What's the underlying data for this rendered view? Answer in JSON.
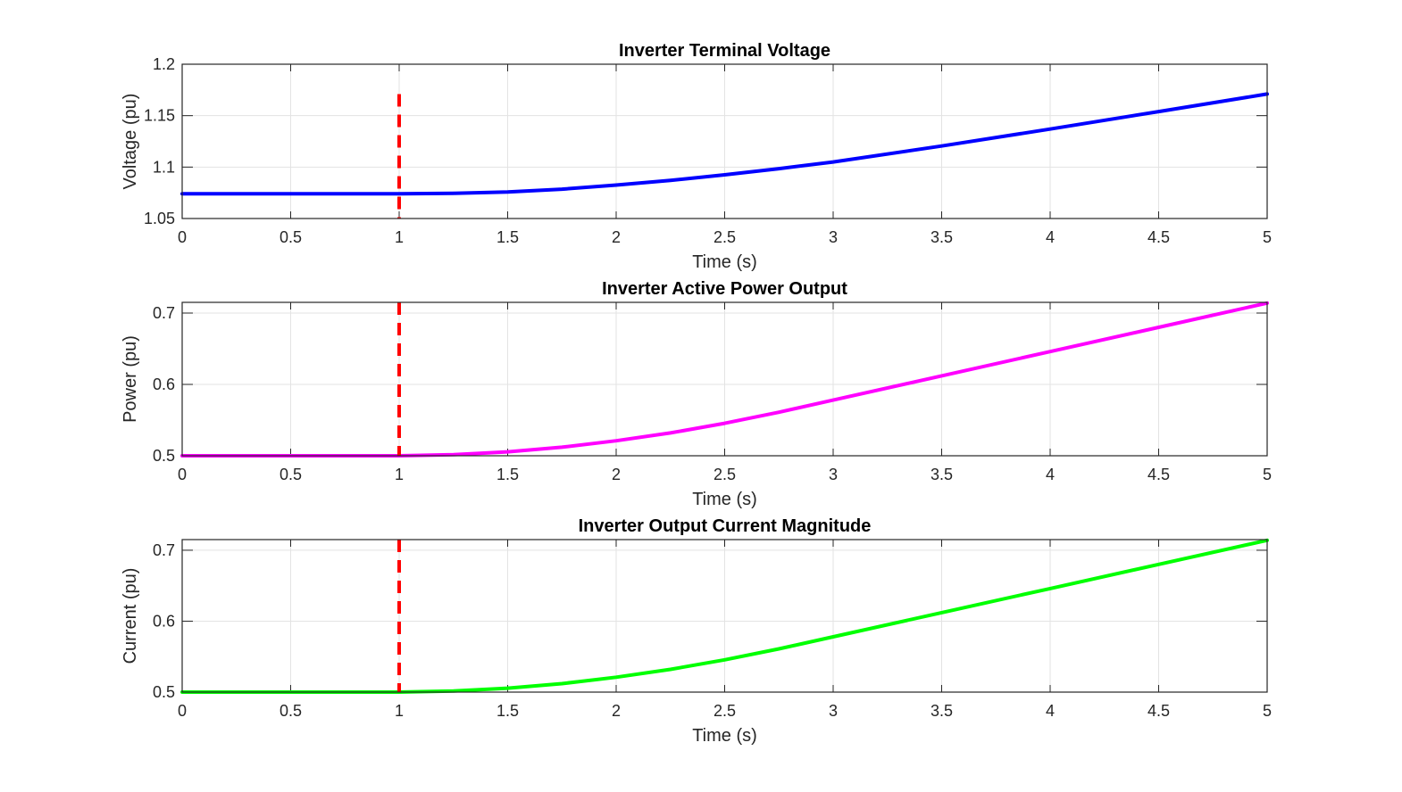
{
  "chart_data": [
    {
      "type": "line",
      "title": "Inverter Terminal Voltage",
      "xlabel": "Time (s)",
      "ylabel": "Voltage (pu)",
      "xlim": [
        0,
        5
      ],
      "ylim": [
        1.05,
        1.2
      ],
      "xticks": [
        "0",
        "0.5",
        "1",
        "1.5",
        "2",
        "2.5",
        "3",
        "3.5",
        "4",
        "4.5",
        "5"
      ],
      "yticks": [
        "1.05",
        "1.1",
        "1.15",
        "1.2"
      ],
      "grid": true,
      "event_line": {
        "x": 1,
        "y_range": [
          1.05,
          1.171
        ],
        "color": "#ff0000",
        "style": "dashed"
      },
      "series": [
        {
          "color": "#0000ff",
          "x": [
            0,
            0.5,
            1,
            1.25,
            1.5,
            1.75,
            2,
            2.25,
            2.5,
            2.75,
            3,
            3.5,
            4,
            4.5,
            5
          ],
          "y": [
            1.074,
            1.074,
            1.074,
            1.0745,
            1.0758,
            1.0785,
            1.0825,
            1.087,
            1.0925,
            1.0985,
            1.105,
            1.1205,
            1.137,
            1.154,
            1.171
          ]
        }
      ]
    },
    {
      "type": "line",
      "title": "Inverter Active Power Output",
      "xlabel": "Time (s)",
      "ylabel": "Power (pu)",
      "xlim": [
        0,
        5
      ],
      "ylim": [
        0.5,
        0.715
      ],
      "xticks": [
        "0",
        "0.5",
        "1",
        "1.5",
        "2",
        "2.5",
        "3",
        "3.5",
        "4",
        "4.5",
        "5"
      ],
      "yticks": [
        "0.5",
        "0.6",
        "0.7"
      ],
      "grid": true,
      "event_line": {
        "x": 1,
        "y_range": [
          0.5,
          0.715
        ],
        "color": "#ff0000",
        "style": "dashed"
      },
      "series": [
        {
          "color": "#ff00ff",
          "x": [
            0,
            0.5,
            1,
            1.25,
            1.5,
            1.75,
            2,
            2.25,
            2.5,
            2.75,
            3,
            3.5,
            4,
            4.5,
            5
          ],
          "y": [
            0.5,
            0.5,
            0.5,
            0.5015,
            0.5055,
            0.512,
            0.521,
            0.532,
            0.5455,
            0.561,
            0.578,
            0.612,
            0.646,
            0.68,
            0.714
          ]
        }
      ]
    },
    {
      "type": "line",
      "title": "Inverter Output Current Magnitude",
      "xlabel": "Time (s)",
      "ylabel": "Current (pu)",
      "xlim": [
        0,
        5
      ],
      "ylim": [
        0.5,
        0.715
      ],
      "xticks": [
        "0",
        "0.5",
        "1",
        "1.5",
        "2",
        "2.5",
        "3",
        "3.5",
        "4",
        "4.5",
        "5"
      ],
      "yticks": [
        "0.5",
        "0.6",
        "0.7"
      ],
      "grid": true,
      "event_line": {
        "x": 1,
        "y_range": [
          0.5,
          0.715
        ],
        "color": "#ff0000",
        "style": "dashed"
      },
      "series": [
        {
          "color": "#00ff00",
          "x": [
            0,
            0.5,
            1,
            1.25,
            1.5,
            1.75,
            2,
            2.25,
            2.5,
            2.75,
            3,
            3.5,
            4,
            4.5,
            5
          ],
          "y": [
            0.5,
            0.5,
            0.5,
            0.5015,
            0.5055,
            0.512,
            0.521,
            0.532,
            0.5455,
            0.561,
            0.578,
            0.612,
            0.646,
            0.68,
            0.714
          ]
        }
      ]
    }
  ]
}
